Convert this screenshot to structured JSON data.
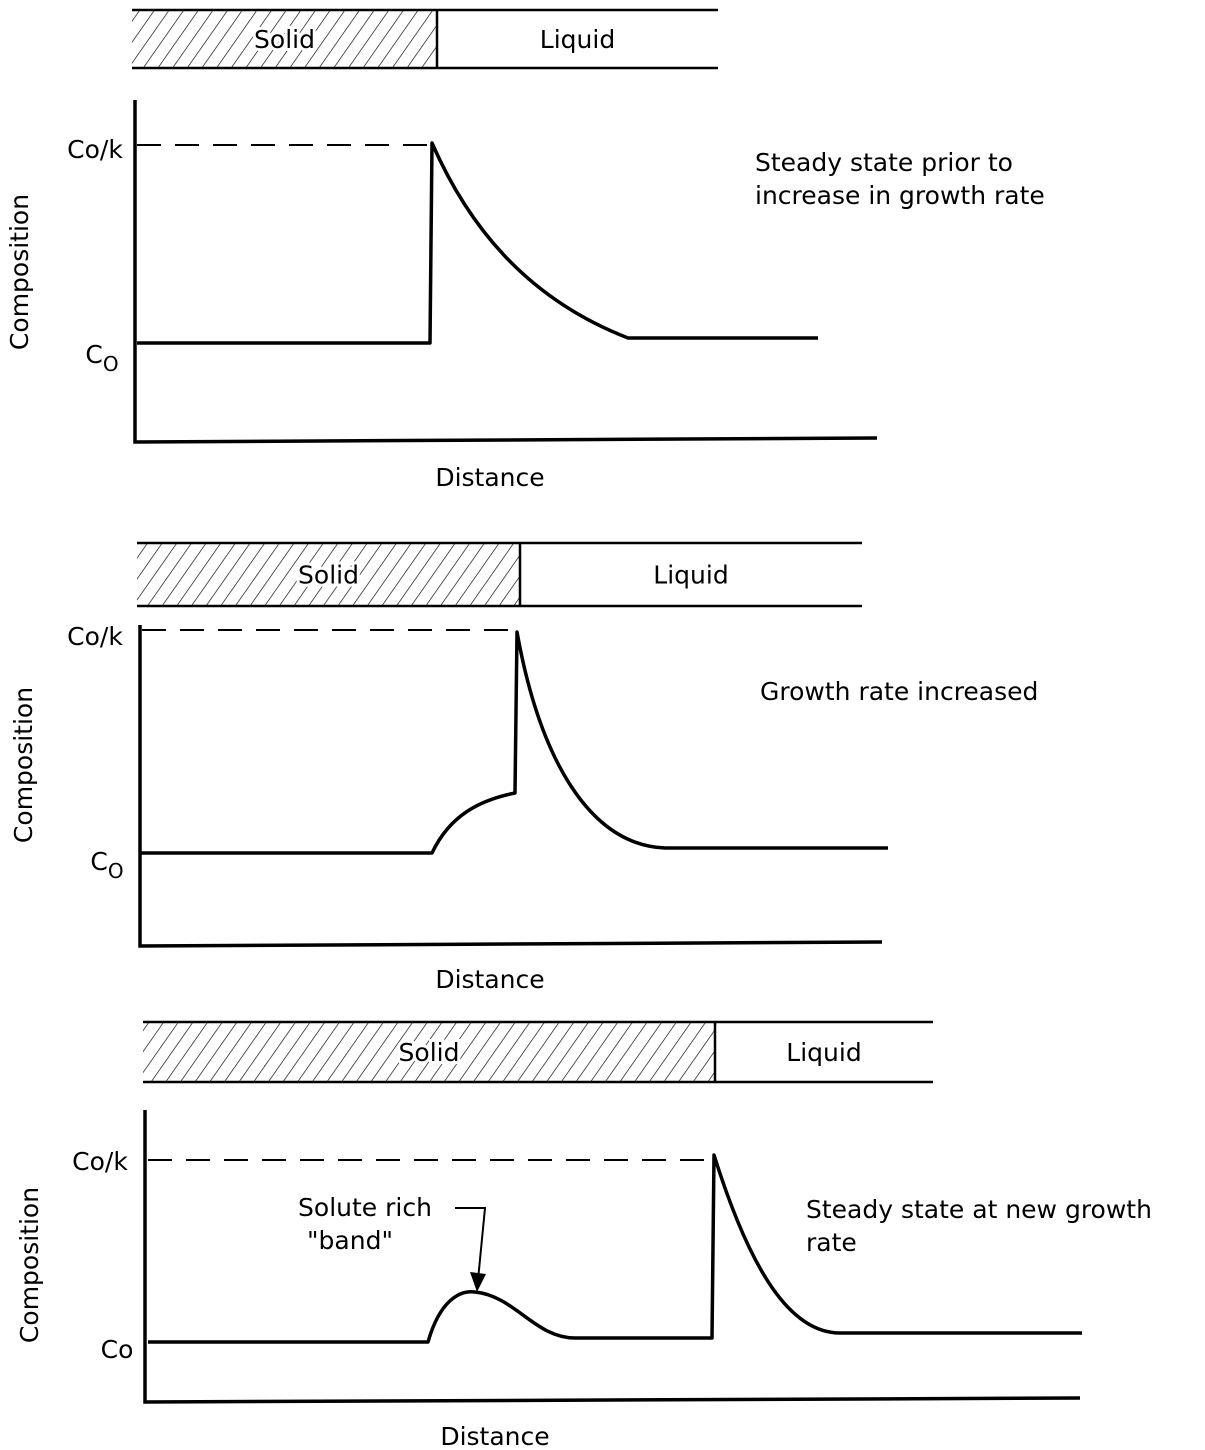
{
  "panels": [
    {
      "solid_label": "Solid",
      "liquid_label": "Liquid",
      "y_axis_label": "Composition",
      "x_axis_label": "Distance",
      "high_label": "Co/k",
      "low_label": "C",
      "low_label_sub": "O",
      "caption": [
        "Steady state prior to",
        "increase in growth rate"
      ]
    },
    {
      "solid_label": "Solid",
      "liquid_label": "Liquid",
      "y_axis_label": "Composition",
      "x_axis_label": "Distance",
      "high_label": "Co/k",
      "low_label": "C",
      "low_label_sub": "O",
      "caption": [
        "Growth rate increased"
      ]
    },
    {
      "solid_label": "Solid",
      "liquid_label": "Liquid",
      "y_axis_label": "Composition",
      "x_axis_label": "Distance",
      "high_label": "Co/k",
      "low_label": "Co",
      "caption": [
        "Steady state at new growth",
        "rate"
      ],
      "annotation": [
        "Solute rich",
        "\"band\""
      ]
    }
  ]
}
